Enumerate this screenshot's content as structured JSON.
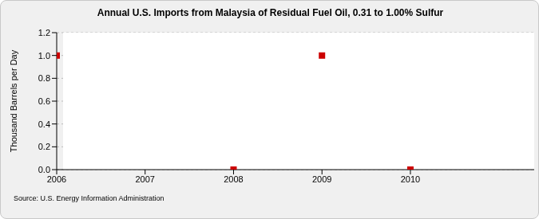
{
  "chart_data": {
    "type": "scatter",
    "title": "Annual U.S. Imports from Malaysia of Residual Fuel Oil, 0.31 to 1.00% Sulfur",
    "y_label": "Thousand Barrels per Day",
    "source": "Source: U.S. Energy Information Administration",
    "x": [
      2006,
      2008,
      2009,
      2010
    ],
    "values": [
      1.0,
      0,
      1.0,
      0
    ],
    "color": "#cc0000",
    "marker": "square",
    "xlim": [
      2006,
      2011.4
    ],
    "xticks": [
      2006,
      2007,
      2008,
      2009,
      2010
    ],
    "ylim": [
      0,
      1.2
    ],
    "yticks": [
      {
        "value": 0,
        "label": "0.0"
      },
      {
        "value": 0.2,
        "label": "0.2"
      },
      {
        "value": 0.4,
        "label": "0.4"
      },
      {
        "value": 0.6,
        "label": "0.6"
      },
      {
        "value": 0.8,
        "label": "0.8"
      },
      {
        "value": 1.0,
        "label": "1.0"
      },
      {
        "value": 1.2,
        "label": "1.2"
      }
    ],
    "grid": true
  }
}
